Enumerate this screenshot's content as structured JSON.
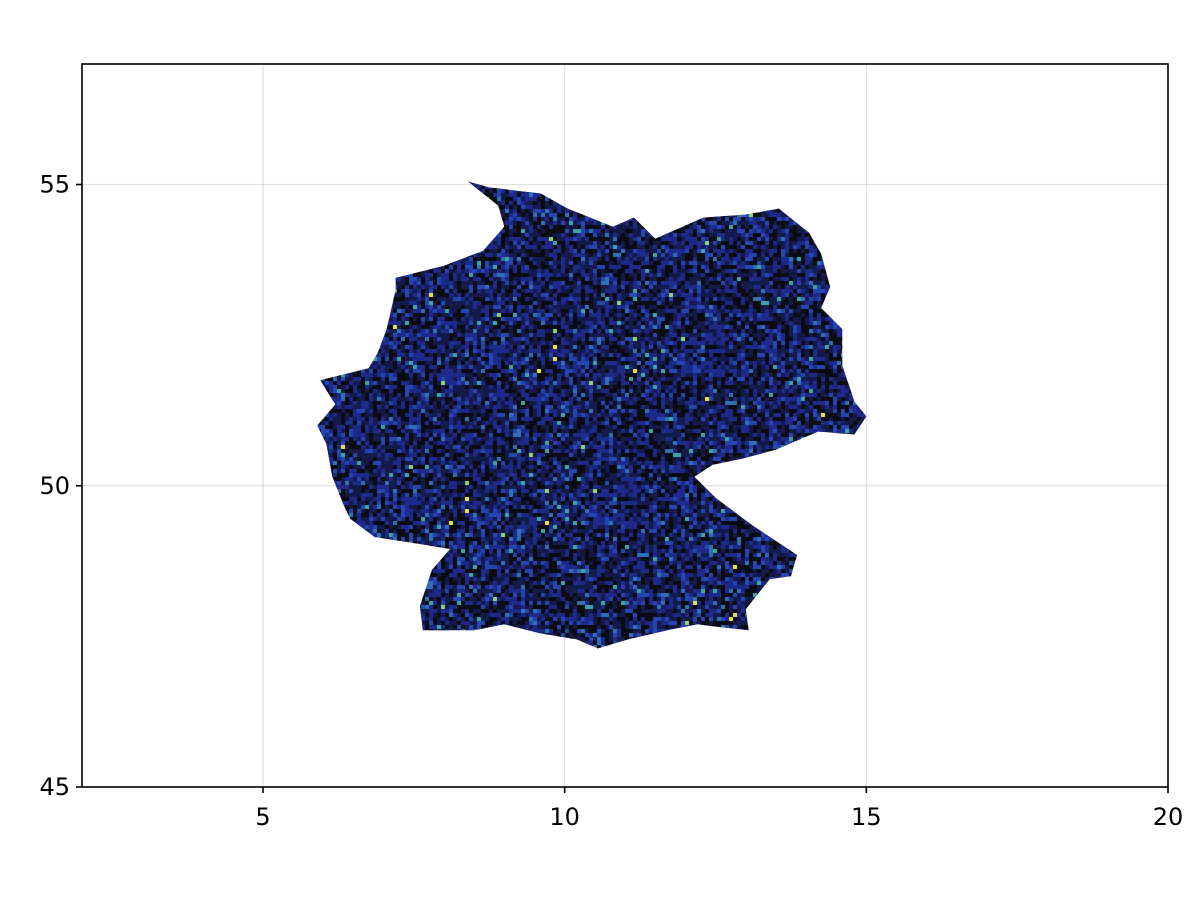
{
  "chart_data": {
    "type": "heatmap",
    "title": "",
    "xlabel": "",
    "ylabel": "",
    "xlim": [
      2,
      20
    ],
    "ylim": [
      45,
      57
    ],
    "x_ticks": [
      {
        "value": 5,
        "label": "5"
      },
      {
        "value": 10,
        "label": "10"
      },
      {
        "value": 15,
        "label": "15"
      },
      {
        "value": 20,
        "label": "20"
      }
    ],
    "y_ticks": [
      {
        "value": 45,
        "label": "45"
      },
      {
        "value": 50,
        "label": "50"
      },
      {
        "value": 55,
        "label": "55"
      }
    ],
    "grid": true,
    "legend": "none",
    "colormap": [
      "#0b0b12",
      "#141a4a",
      "#1d2a8c",
      "#2546b0",
      "#2f6fb8",
      "#3aa3a8",
      "#8fd16a",
      "#e6e13c"
    ],
    "region": {
      "name": "Germany",
      "outline_lonlat": [
        [
          8.4,
          55.05
        ],
        [
          8.75,
          54.95
        ],
        [
          9.6,
          54.85
        ],
        [
          10.05,
          54.6
        ],
        [
          10.8,
          54.3
        ],
        [
          11.15,
          54.45
        ],
        [
          11.5,
          54.1
        ],
        [
          12.3,
          54.45
        ],
        [
          13.0,
          54.5
        ],
        [
          13.55,
          54.6
        ],
        [
          14.05,
          54.2
        ],
        [
          14.25,
          53.85
        ],
        [
          14.4,
          53.3
        ],
        [
          14.25,
          52.95
        ],
        [
          14.6,
          52.6
        ],
        [
          14.6,
          52.0
        ],
        [
          14.8,
          51.4
        ],
        [
          15.0,
          51.15
        ],
        [
          14.8,
          50.85
        ],
        [
          14.2,
          50.9
        ],
        [
          13.5,
          50.6
        ],
        [
          12.95,
          50.45
        ],
        [
          12.45,
          50.35
        ],
        [
          12.15,
          50.15
        ],
        [
          12.5,
          49.8
        ],
        [
          13.1,
          49.35
        ],
        [
          13.85,
          48.85
        ],
        [
          13.75,
          48.5
        ],
        [
          13.4,
          48.45
        ],
        [
          13.0,
          47.95
        ],
        [
          13.05,
          47.6
        ],
        [
          12.6,
          47.65
        ],
        [
          12.2,
          47.7
        ],
        [
          11.7,
          47.6
        ],
        [
          11.05,
          47.45
        ],
        [
          10.55,
          47.3
        ],
        [
          10.2,
          47.45
        ],
        [
          9.6,
          47.55
        ],
        [
          9.0,
          47.7
        ],
        [
          8.5,
          47.6
        ],
        [
          7.65,
          47.6
        ],
        [
          7.6,
          48.0
        ],
        [
          7.8,
          48.6
        ],
        [
          8.1,
          48.95
        ],
        [
          7.5,
          49.05
        ],
        [
          6.85,
          49.15
        ],
        [
          6.45,
          49.45
        ],
        [
          6.35,
          49.65
        ],
        [
          6.15,
          50.15
        ],
        [
          6.05,
          50.7
        ],
        [
          5.9,
          51.0
        ],
        [
          6.2,
          51.35
        ],
        [
          5.95,
          51.75
        ],
        [
          6.75,
          51.95
        ],
        [
          6.9,
          52.2
        ],
        [
          7.05,
          52.6
        ],
        [
          7.2,
          53.25
        ],
        [
          7.2,
          53.45
        ],
        [
          8.0,
          53.65
        ],
        [
          8.65,
          53.9
        ],
        [
          9.0,
          54.3
        ],
        [
          8.9,
          54.65
        ],
        [
          8.4,
          55.05
        ]
      ]
    }
  }
}
